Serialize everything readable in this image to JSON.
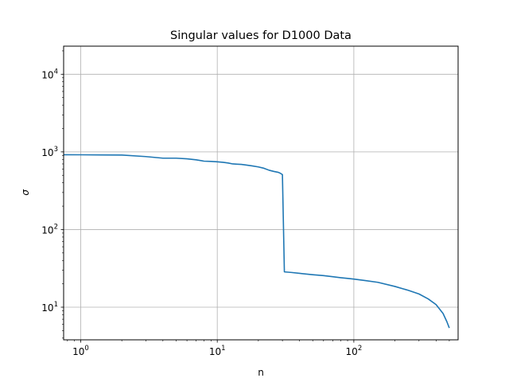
{
  "chart_data": {
    "type": "line",
    "title": "Singular values for D1000 Data",
    "xlabel": "n",
    "ylabel": "σ",
    "xscale": "log",
    "yscale": "log",
    "xlim": [
      0.75,
      580
    ],
    "ylim": [
      3.8,
      23000
    ],
    "grid": true,
    "x_ticks": [
      {
        "value": 1,
        "base": "10",
        "exp": "0"
      },
      {
        "value": 10,
        "base": "10",
        "exp": "1"
      },
      {
        "value": 100,
        "base": "10",
        "exp": "2"
      }
    ],
    "y_ticks": [
      {
        "value": 10,
        "base": "10",
        "exp": "1"
      },
      {
        "value": 100,
        "base": "10",
        "exp": "2"
      },
      {
        "value": 1000,
        "base": "10",
        "exp": "3"
      },
      {
        "value": 10000,
        "base": "10",
        "exp": "4"
      }
    ],
    "color": "#1f77b4",
    "series": [
      {
        "x": [
          0.75,
          1,
          2,
          3,
          4,
          5,
          6,
          7,
          8,
          9,
          10,
          11,
          12,
          13,
          14,
          15,
          16,
          18,
          20,
          22,
          24,
          26,
          28,
          29,
          30,
          31,
          35,
          40,
          50,
          60,
          70,
          80,
          90,
          100,
          120,
          150,
          200,
          250,
          300,
          350,
          400,
          450,
          480,
          500
        ],
        "y": [
          920,
          918,
          910,
          870,
          830,
          830,
          815,
          790,
          760,
          755,
          745,
          735,
          720,
          700,
          695,
          690,
          680,
          660,
          640,
          615,
          580,
          560,
          545,
          530,
          510,
          28.5,
          28,
          27.3,
          26.2,
          25.5,
          24.7,
          24,
          23.5,
          23,
          22.1,
          20.9,
          18.5,
          16.5,
          14.8,
          12.8,
          10.8,
          8.3,
          6.5,
          5.4
        ]
      }
    ]
  }
}
